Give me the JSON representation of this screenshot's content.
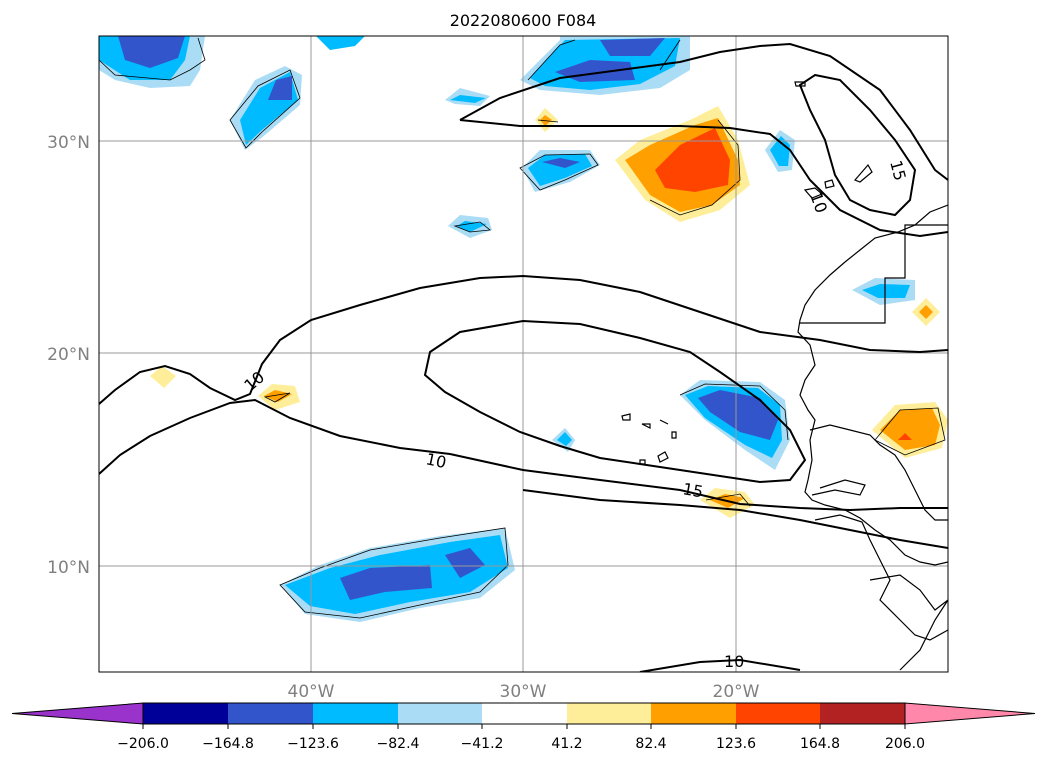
{
  "title": "2022080600 F084",
  "map": {
    "lat_ticks": [
      "30°N",
      "20°N",
      "10°N"
    ],
    "lon_ticks": [
      "40°W",
      "30°W",
      "20°W"
    ],
    "contour_labels": [
      "10",
      "10",
      "10",
      "15",
      "15",
      "10",
      "10"
    ]
  },
  "colorbar": {
    "ticks": [
      "−206.0",
      "−164.8",
      "−123.6",
      "−82.4",
      "−41.2",
      "41.2",
      "82.4",
      "123.6",
      "164.8",
      "206.0"
    ],
    "colors": {
      "under": "#9933cc",
      "bins": [
        "#000099",
        "#3355cc",
        "#00bbff",
        "#aaddf5",
        "#ffffff",
        "#ffee99",
        "#ffa000",
        "#ff4400",
        "#b22222"
      ],
      "over": "#ff88aa"
    }
  }
}
